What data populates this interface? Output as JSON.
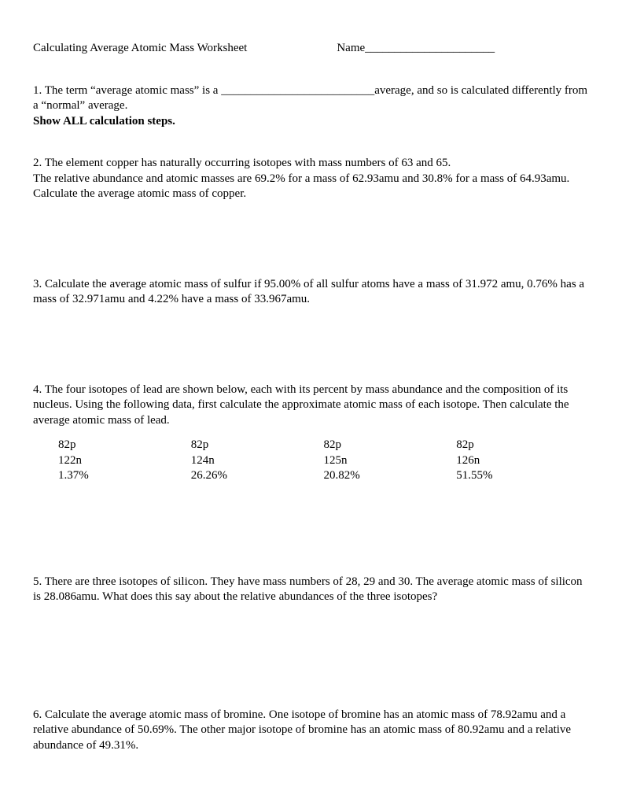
{
  "header": {
    "title": "Calculating Average Atomic Mass Worksheet",
    "name_label": "Name",
    "name_blank": "______________________"
  },
  "questions": {
    "q1": {
      "part1": "1. The term “average atomic mass” is a ",
      "blank": "__________________________",
      "part2": "average, and so is calculated differently from a “normal” average.",
      "instruction": "Show ALL calculation steps."
    },
    "q2": {
      "line1": "2. The element copper has naturally occurring isotopes with mass numbers of 63 and 65.",
      "line2": "The relative abundance and atomic masses are 69.2% for a mass of 62.93amu and 30.8% for a mass of 64.93amu. Calculate the average atomic mass of copper."
    },
    "q3": {
      "text": "3. Calculate the average atomic mass of sulfur if 95.00% of all sulfur atoms have a mass of 31.972 amu, 0.76% has a mass of 32.971amu and 4.22% have a mass of 33.967amu."
    },
    "q4": {
      "text": "4. The four isotopes of lead are shown below, each with its percent by mass abundance and the composition of its nucleus. Using the following data, first calculate the approximate atomic mass of each isotope. Then calculate the average atomic mass of lead.",
      "isotopes": [
        {
          "protons": " 82p",
          "neutrons": "122n",
          "abundance": "1.37%"
        },
        {
          "protons": " 82p",
          "neutrons": "124n",
          "abundance": "26.26%"
        },
        {
          "protons": " 82p",
          "neutrons": "125n",
          "abundance": "20.82%"
        },
        {
          "protons": " 82p",
          "neutrons": "126n",
          "abundance": "51.55%"
        }
      ]
    },
    "q5": {
      "text": "5. There are three isotopes of silicon. They have mass numbers of 28, 29 and 30. The average atomic mass of silicon is 28.086amu. What does this say about the relative abundances of the three isotopes?"
    },
    "q6": {
      "text": "6. Calculate the average atomic mass of bromine. One isotope of bromine has an atomic mass of 78.92amu and a relative abundance of 50.69%. The other major isotope of bromine has an atomic mass of 80.92amu and a relative abundance of 49.31%."
    }
  }
}
